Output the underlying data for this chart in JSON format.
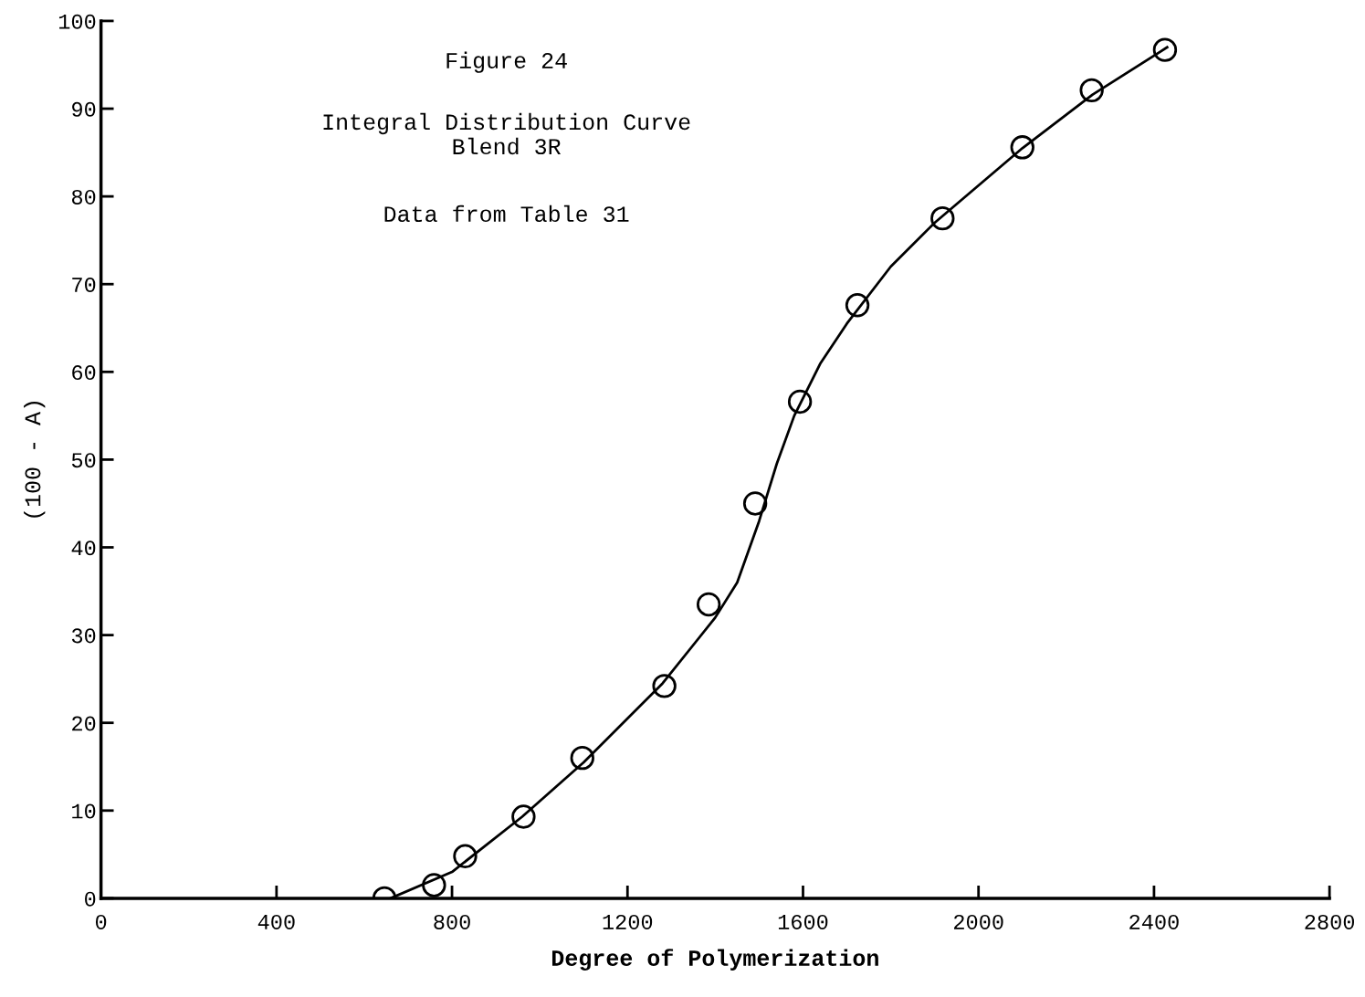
{
  "chart_data": {
    "type": "scatter",
    "title": "Figure 24",
    "subtitle": "Integral Distribution Curve\nBlend 3R",
    "annotations": [
      "Data from Table 31"
    ],
    "xlabel": "Degree of Polymerization",
    "ylabel": "(100 - A)",
    "series": [
      {
        "color": "#000000",
        "marker": "circle",
        "x": [
          646,
          759,
          830,
          963,
          1097,
          1284,
          1385,
          1491,
          1593,
          1724,
          1918,
          2100,
          2258,
          2425
        ],
        "values": [
          0,
          1.5,
          4.8,
          9.3,
          16,
          24.2,
          33.5,
          45,
          56.6,
          67.6,
          77.5,
          85.6,
          92.1,
          96.7
        ]
      },
      {
        "type": "line",
        "color": "#000000",
        "line_style": "solid",
        "x": [
          660,
          800,
          960,
          1100,
          1280,
          1400,
          1450,
          1500,
          1540,
          1580,
          1640,
          1700,
          1800,
          1900,
          2100,
          2260,
          2430
        ],
        "values": [
          0,
          3,
          9.3,
          15.5,
          24.5,
          32,
          36,
          43,
          49.5,
          55,
          61,
          65.5,
          72,
          77,
          85.5,
          91.6,
          97
        ]
      }
    ],
    "xlim": [
      0,
      2800
    ],
    "ylim": [
      0,
      100
    ],
    "xticks": [
      0,
      400,
      800,
      1200,
      1600,
      2000,
      2400,
      2800
    ],
    "yticks": [
      0,
      10,
      20,
      30,
      40,
      50,
      60,
      70,
      80,
      90,
      100
    ],
    "grid": false,
    "legend": false
  }
}
